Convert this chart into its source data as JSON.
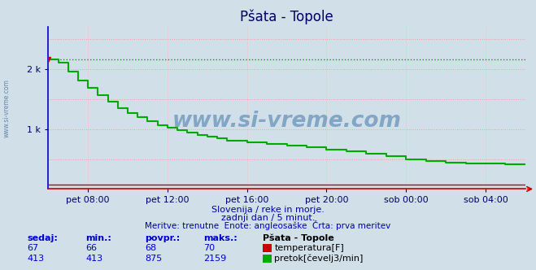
{
  "title": "Pšata - Topole",
  "bg_color": "#d0dfe8",
  "plot_bg_color": "#d0dfe8",
  "grid_color_h": "#ff9999",
  "grid_color_v": "#ffbbbb",
  "x_tick_labels": [
    "pet 08:00",
    "pet 12:00",
    "pet 16:00",
    "pet 20:00",
    "sob 00:00",
    "sob 04:00"
  ],
  "y_tick_labels": [
    "1 k",
    "2 k"
  ],
  "y_tick_values": [
    1000,
    2000
  ],
  "ylim": [
    0,
    2700
  ],
  "xlim_minutes": 288,
  "title_color": "#000066",
  "title_fontsize": 12,
  "tick_color": "#000066",
  "tick_fontsize": 8,
  "temp_color": "#cc0000",
  "flow_color": "#00aa00",
  "flow_max_value": 2159,
  "temp_value": 67,
  "temp_min": 66,
  "temp_avg": 68,
  "temp_max": 70,
  "flow_min": 413,
  "flow_avg": 875,
  "flow_max": 2159,
  "flow_current": 413,
  "temp_current": 67,
  "subtitle1": "Slovenija / reke in morje.",
  "subtitle2": "zadnji dan / 5 minut.",
  "subtitle3": "Meritve: trenutne  Enote: angleosaške  Črta: prva meritev",
  "subtitle_color": "#0000aa",
  "label_color": "#0000cc",
  "watermark": "www.si-vreme.com",
  "watermark_color": "#4477aa",
  "legend_title": "Pšata - Topole",
  "legend_temp": "temperatura[F]",
  "legend_flow": "pretok[čevelj3/min]",
  "sidebar_text": "www.si-vreme.com",
  "sidebar_color": "#6688aa",
  "flow_steps_x": [
    0,
    6,
    12,
    18,
    24,
    30,
    36,
    42,
    48,
    54,
    60,
    66,
    72,
    78,
    84,
    90,
    96,
    102,
    108,
    120,
    132,
    144,
    156,
    168,
    180,
    192,
    204,
    216,
    228,
    240,
    252,
    264,
    276,
    288
  ],
  "flow_steps_y": [
    2159,
    2100,
    1960,
    1810,
    1680,
    1560,
    1450,
    1350,
    1270,
    1200,
    1130,
    1060,
    1020,
    980,
    940,
    900,
    870,
    840,
    810,
    780,
    750,
    720,
    690,
    660,
    630,
    590,
    550,
    500,
    460,
    440,
    430,
    420,
    413,
    413
  ],
  "left_spine_color": "#0000cc",
  "bottom_spine_color": "#cc0000",
  "x_tick_minutes": [
    96,
    192,
    288,
    384,
    480,
    576
  ]
}
